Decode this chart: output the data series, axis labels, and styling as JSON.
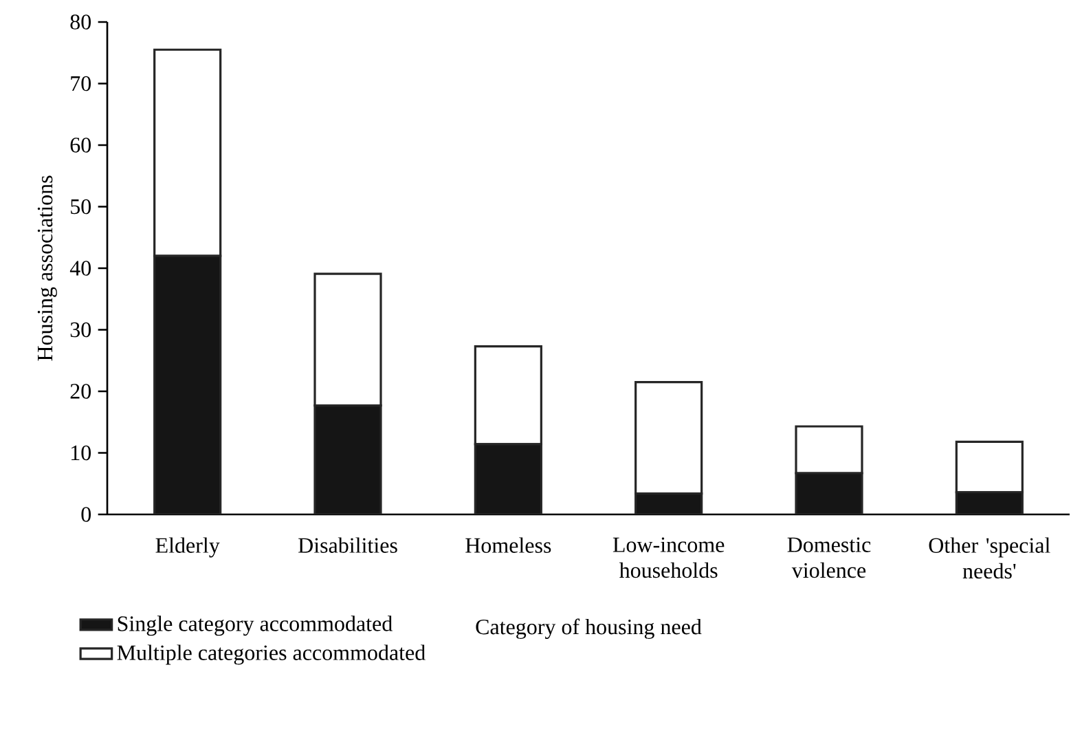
{
  "chart_data": {
    "type": "bar",
    "stacked": true,
    "xlabel": "Category of housing need",
    "ylabel": "Housing associations",
    "categories": [
      "Elderly",
      "Disabilities",
      "Homeless",
      "Low-income households",
      "Domestic violence",
      "Other 'special needs'"
    ],
    "series": [
      {
        "name": "Single category accommodated",
        "color": "#151515",
        "values": [
          42,
          17.7,
          11.4,
          3.4,
          6.7,
          3.6
        ]
      },
      {
        "name": "Multiple categories accommodated",
        "color": "#ffffff",
        "values": [
          33.5,
          21.4,
          15.9,
          18.1,
          7.6,
          8.2
        ]
      }
    ],
    "ylim": [
      0,
      80
    ],
    "yticks": [
      0,
      10,
      20,
      30,
      40,
      50,
      60,
      70,
      80
    ],
    "legend": "bottom left"
  }
}
